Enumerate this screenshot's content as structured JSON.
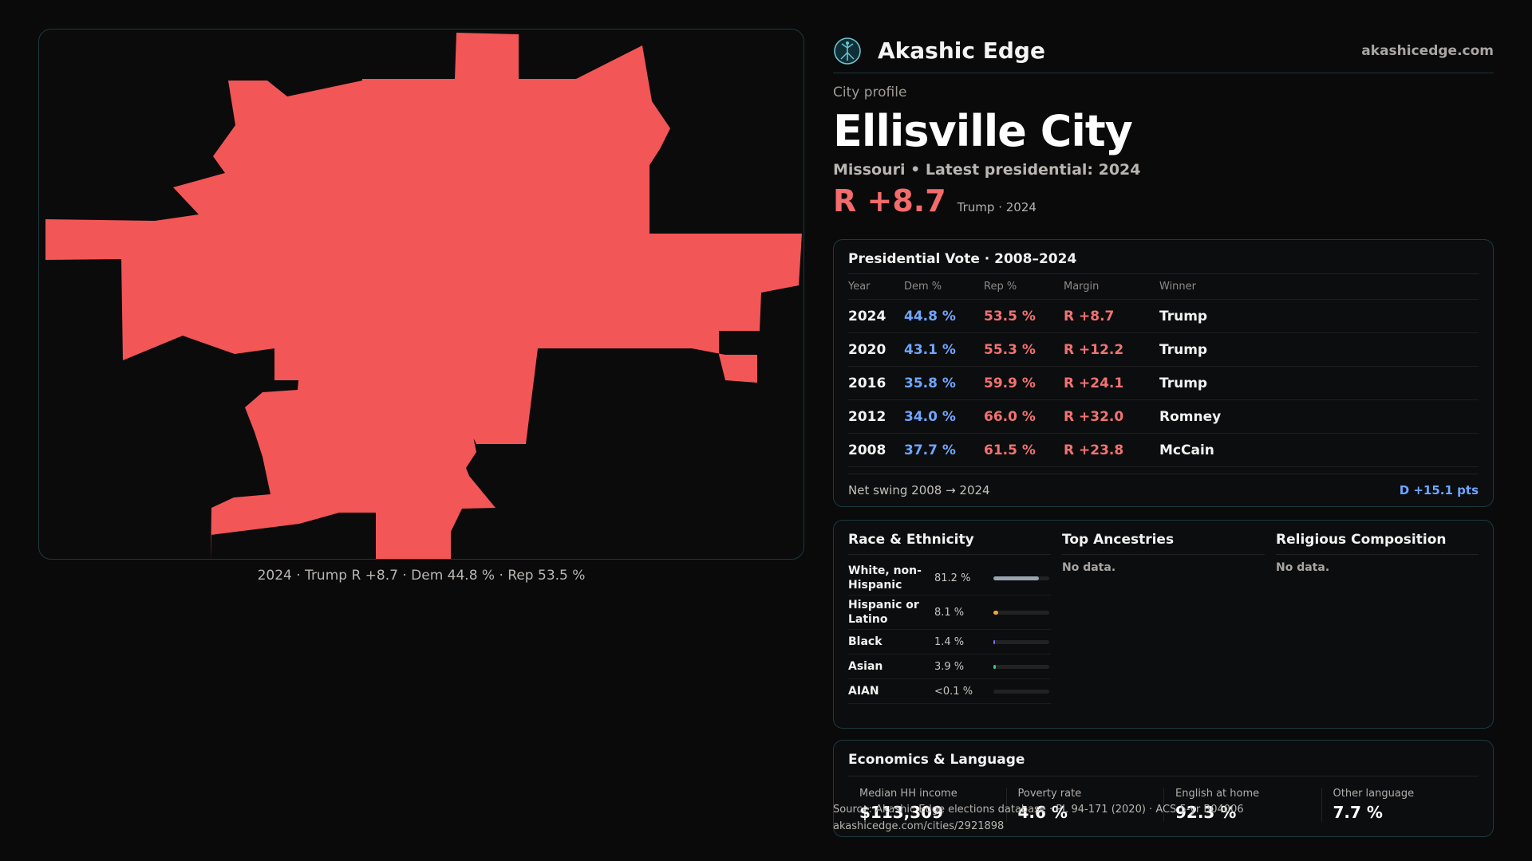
{
  "brand": {
    "name": "Akashic Edge",
    "url": "akashicedge.com",
    "logo_icon": "tree-of-life-icon",
    "accent": "#6fc3d0"
  },
  "profile": {
    "kicker": "City profile",
    "city": "Ellisville City",
    "subtitle": "Missouri • Latest presidential: 2024",
    "margin": "R +8.7",
    "margin_note": "Trump · 2024"
  },
  "map": {
    "fill_color": "#f25656",
    "caption": "2024 · Trump R +8.7 · Dem 44.8 % · Rep 53.5 %"
  },
  "vote": {
    "title": "Presidential Vote · 2008–2024",
    "headers": [
      "Year",
      "Dem %",
      "Rep %",
      "Margin",
      "Winner"
    ],
    "rows": [
      {
        "year": "2024",
        "dem": "44.8 %",
        "rep": "53.5 %",
        "margin": "R +8.7",
        "winner": "Trump"
      },
      {
        "year": "2020",
        "dem": "43.1 %",
        "rep": "55.3 %",
        "margin": "R +12.2",
        "winner": "Trump"
      },
      {
        "year": "2016",
        "dem": "35.8 %",
        "rep": "59.9 %",
        "margin": "R +24.1",
        "winner": "Trump"
      },
      {
        "year": "2012",
        "dem": "34.0 %",
        "rep": "66.0 %",
        "margin": "R +32.0",
        "winner": "Romney"
      },
      {
        "year": "2008",
        "dem": "37.7 %",
        "rep": "61.5 %",
        "margin": "R +23.8",
        "winner": "McCain"
      }
    ],
    "swing_label": "Net swing 2008 → 2024",
    "swing_value": "D +15.1 pts"
  },
  "race": {
    "title": "Race & Ethnicity",
    "rows": [
      {
        "label": "White, non-Hispanic",
        "pct": "81.2 %",
        "share": 0.812,
        "color": "#9aa4b1"
      },
      {
        "label": "Hispanic or Latino",
        "pct": "8.1 %",
        "share": 0.081,
        "color": "#f0a630"
      },
      {
        "label": "Black",
        "pct": "1.4 %",
        "share": 0.014,
        "color": "#7d6cf0"
      },
      {
        "label": "Asian",
        "pct": "3.9 %",
        "share": 0.039,
        "color": "#3fc28a"
      },
      {
        "label": "AIAN",
        "pct": "<0.1 %",
        "share": 0.0,
        "color": "#d26bd6"
      }
    ]
  },
  "ancestries": {
    "title": "Top Ancestries",
    "empty": "No data."
  },
  "religion": {
    "title": "Religious Composition",
    "empty": "No data."
  },
  "economics": {
    "title": "Economics & Language",
    "items": [
      {
        "label": "Median HH income",
        "value": "$113,309"
      },
      {
        "label": "Poverty rate",
        "value": "4.6 %"
      },
      {
        "label": "English at home",
        "value": "92.3 %"
      },
      {
        "label": "Other language",
        "value": "7.7 %"
      }
    ]
  },
  "source": {
    "line1": "Source: Akashic Edge elections database · PL 94-171 (2020) · ACS 5-yr B04006",
    "line2": "akashicedge.com/cities/2921898"
  }
}
